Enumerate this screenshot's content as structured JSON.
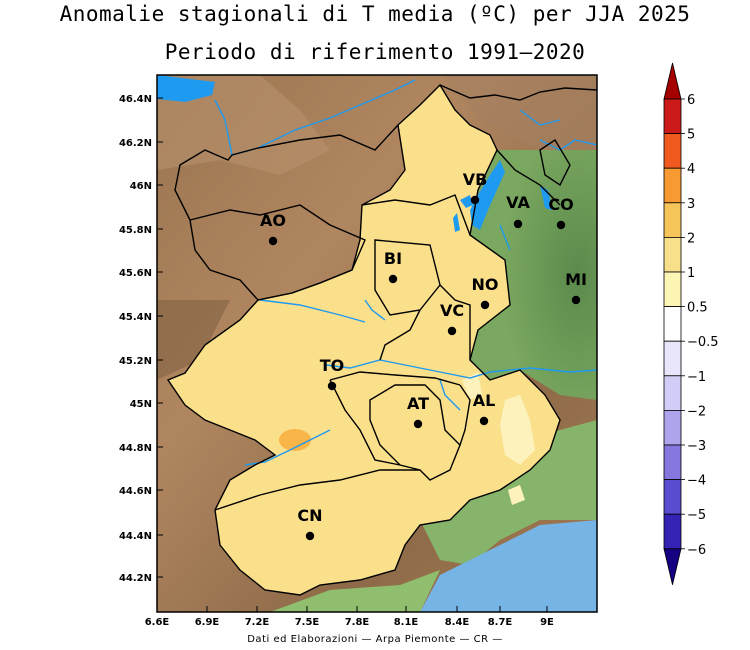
{
  "title": "Anomalie stagionali di T media (ºC) per JJA 2025",
  "subtitle": "Periodo di riferimento 1991—2020",
  "credit": "Dati ed Elaborazioni — Arpa Piemonte — CR —",
  "axes": {
    "x_ticks": [
      "6.6E",
      "6.9E",
      "7.2E",
      "7.5E",
      "7.8E",
      "8.1E",
      "8.4E",
      "8.7E",
      "9E"
    ],
    "y_ticks": [
      "46.4N",
      "46.2N",
      "46N",
      "45.8N",
      "45.6N",
      "45.4N",
      "45.2N",
      "45N",
      "44.8N",
      "44.6N",
      "44.4N",
      "44.2N"
    ]
  },
  "cities": [
    {
      "code": "VB"
    },
    {
      "code": "VA"
    },
    {
      "code": "CO"
    },
    {
      "code": "AO"
    },
    {
      "code": "BI"
    },
    {
      "code": "NO"
    },
    {
      "code": "MI"
    },
    {
      "code": "VC"
    },
    {
      "code": "TO"
    },
    {
      "code": "AT"
    },
    {
      "code": "AL"
    },
    {
      "code": "CN"
    }
  ],
  "colorbar": {
    "labels": [
      "6",
      "5",
      "4",
      "3",
      "2",
      "1",
      "0.5",
      "−0.5",
      "−1",
      "−2",
      "−3",
      "−4",
      "−5",
      "−6"
    ],
    "colors": [
      "#cc1a1a",
      "#f05a1e",
      "#f79a32",
      "#f5c55a",
      "#f8e08a",
      "#fdf5b3",
      "#ffffff",
      "#e9e6fb",
      "#d2cdf6",
      "#ada5ec",
      "#8478de",
      "#5a4ccf",
      "#3322b4"
    ],
    "top_arrow_color": "#a40000",
    "bottom_arrow_color": "#150082"
  },
  "map_colors": {
    "anomaly_fill": "#fbe08c",
    "anomaly_light": "#fdf1bc",
    "anomaly_orange": "#f7b54a",
    "water": "#1e9af0",
    "lowland_green": "#5f8d50",
    "sea": "#77b4e6"
  }
}
